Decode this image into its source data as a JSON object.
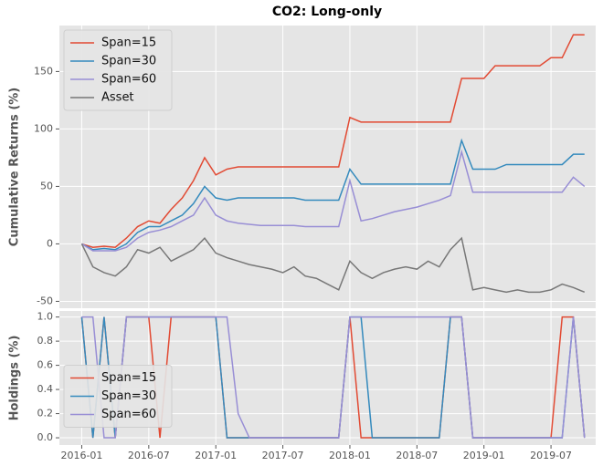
{
  "chart_data": [
    {
      "type": "line",
      "title": "CO2: Long-only",
      "y_label": "Cumulative Returns (%)",
      "x": [
        "2016-01",
        "2016-02",
        "2016-03",
        "2016-04",
        "2016-05",
        "2016-06",
        "2016-07",
        "2016-08",
        "2016-09",
        "2016-10",
        "2016-11",
        "2016-12",
        "2017-01",
        "2017-02",
        "2017-03",
        "2017-04",
        "2017-05",
        "2017-06",
        "2017-07",
        "2017-08",
        "2017-09",
        "2017-10",
        "2017-11",
        "2017-12",
        "2018-01",
        "2018-02",
        "2018-03",
        "2018-04",
        "2018-05",
        "2018-06",
        "2018-07",
        "2018-08",
        "2018-09",
        "2018-10",
        "2018-11",
        "2018-12",
        "2019-01",
        "2019-02",
        "2019-03",
        "2019-04",
        "2019-05",
        "2019-06",
        "2019-07",
        "2019-08",
        "2019-09",
        "2019-10"
      ],
      "series": [
        {
          "name": "Span=15",
          "color": "#e24a33",
          "values": [
            0,
            -3,
            -2,
            -3,
            5,
            15,
            20,
            18,
            30,
            40,
            55,
            75,
            60,
            65,
            67,
            67,
            67,
            67,
            67,
            67,
            67,
            67,
            67,
            67,
            110,
            106,
            106,
            106,
            106,
            106,
            106,
            106,
            106,
            106,
            144,
            144,
            144,
            155,
            155,
            155,
            155,
            155,
            162,
            162,
            182,
            182
          ]
        },
        {
          "name": "Span=30",
          "color": "#348abd",
          "values": [
            0,
            -5,
            -4,
            -5,
            0,
            10,
            15,
            15,
            20,
            25,
            35,
            50,
            40,
            38,
            40,
            40,
            40,
            40,
            40,
            40,
            38,
            38,
            38,
            38,
            65,
            52,
            52,
            52,
            52,
            52,
            52,
            52,
            52,
            52,
            90,
            65,
            65,
            65,
            69,
            69,
            69,
            69,
            69,
            69,
            78,
            78
          ]
        },
        {
          "name": "Span=60",
          "color": "#988ed5",
          "values": [
            0,
            -6,
            -6,
            -6,
            -3,
            5,
            10,
            12,
            15,
            20,
            25,
            40,
            25,
            20,
            18,
            17,
            16,
            16,
            16,
            16,
            15,
            15,
            15,
            15,
            55,
            20,
            22,
            25,
            28,
            30,
            32,
            35,
            38,
            42,
            80,
            45,
            45,
            45,
            45,
            45,
            45,
            45,
            45,
            45,
            58,
            50
          ]
        },
        {
          "name": "Asset",
          "color": "#777777",
          "values": [
            0,
            -20,
            -25,
            -28,
            -20,
            -5,
            -8,
            -3,
            -15,
            -10,
            -5,
            5,
            -8,
            -12,
            -15,
            -18,
            -20,
            -22,
            -25,
            -20,
            -28,
            -30,
            -35,
            -40,
            -15,
            -25,
            -30,
            -25,
            -22,
            -20,
            -22,
            -15,
            -20,
            -5,
            5,
            -40,
            -38,
            -40,
            -42,
            -40,
            -42,
            -42,
            -40,
            -35,
            -38,
            -42
          ]
        }
      ],
      "xlim": [
        "2015-11",
        "2019-11"
      ],
      "xticks": [
        "2016-01",
        "2016-07",
        "2017-01",
        "2017-07",
        "2018-01",
        "2018-07",
        "2019-01",
        "2019-07"
      ],
      "ylim": [
        -56,
        190
      ],
      "yticks": [
        -50,
        0,
        50,
        100,
        150
      ],
      "grid": true,
      "legend": "upper left"
    },
    {
      "type": "line",
      "y_label": "Holdings (%)",
      "x": [
        "2016-01",
        "2016-02",
        "2016-03",
        "2016-04",
        "2016-05",
        "2016-06",
        "2016-07",
        "2016-08",
        "2016-09",
        "2016-10",
        "2016-11",
        "2016-12",
        "2017-01",
        "2017-02",
        "2017-03",
        "2017-04",
        "2017-05",
        "2017-06",
        "2017-07",
        "2017-08",
        "2017-09",
        "2017-10",
        "2017-11",
        "2017-12",
        "2018-01",
        "2018-02",
        "2018-03",
        "2018-04",
        "2018-05",
        "2018-06",
        "2018-07",
        "2018-08",
        "2018-09",
        "2018-10",
        "2018-11",
        "2018-12",
        "2019-01",
        "2019-02",
        "2019-03",
        "2019-04",
        "2019-05",
        "2019-06",
        "2019-07",
        "2019-08",
        "2019-09",
        "2019-10"
      ],
      "series": [
        {
          "name": "Span=15",
          "color": "#e24a33",
          "values": [
            1,
            0,
            1,
            0,
            1,
            1,
            1,
            0,
            1,
            1,
            1,
            1,
            1,
            0,
            0,
            0,
            0,
            0,
            0,
            0,
            0,
            0,
            0,
            0,
            1,
            0,
            0,
            0,
            0,
            0,
            0,
            0,
            0,
            1,
            1,
            0,
            0,
            0,
            0,
            0,
            0,
            0,
            0,
            1,
            1,
            0
          ]
        },
        {
          "name": "Span=30",
          "color": "#348abd",
          "values": [
            1,
            0,
            1,
            0,
            1,
            1,
            1,
            1,
            1,
            1,
            1,
            1,
            1,
            0,
            0,
            0,
            0,
            0,
            0,
            0,
            0,
            0,
            0,
            0,
            1,
            1,
            0,
            0,
            0,
            0,
            0,
            0,
            0,
            1,
            1,
            0,
            0,
            0,
            0,
            0,
            0,
            0,
            0,
            0,
            1,
            0
          ]
        },
        {
          "name": "Span=60",
          "color": "#988ed5",
          "values": [
            1,
            1,
            0,
            0,
            1,
            1,
            1,
            1,
            1,
            1,
            1,
            1,
            1,
            1,
            0.2,
            0,
            0,
            0,
            0,
            0,
            0,
            0,
            0,
            0,
            1,
            1,
            1,
            1,
            1,
            1,
            1,
            1,
            1,
            1,
            1,
            0,
            0,
            0,
            0,
            0,
            0,
            0,
            0,
            0,
            1,
            0
          ]
        }
      ],
      "xlim": [
        "2015-11",
        "2019-11"
      ],
      "xticks": [
        "2016-01",
        "2016-07",
        "2017-01",
        "2017-07",
        "2018-01",
        "2018-07",
        "2019-01",
        "2019-07"
      ],
      "ylim": [
        -0.06,
        1.05
      ],
      "yticks": [
        {
          "value": 0,
          "label": "0.0"
        },
        {
          "value": 0.2,
          "label": "0.2"
        },
        {
          "value": 0.4,
          "label": "0.4"
        },
        {
          "value": 0.6,
          "label": "0.6"
        },
        {
          "value": 0.8,
          "label": "0.8"
        },
        {
          "value": 1,
          "label": "1.0"
        }
      ],
      "grid": true,
      "legend": "center left"
    }
  ]
}
